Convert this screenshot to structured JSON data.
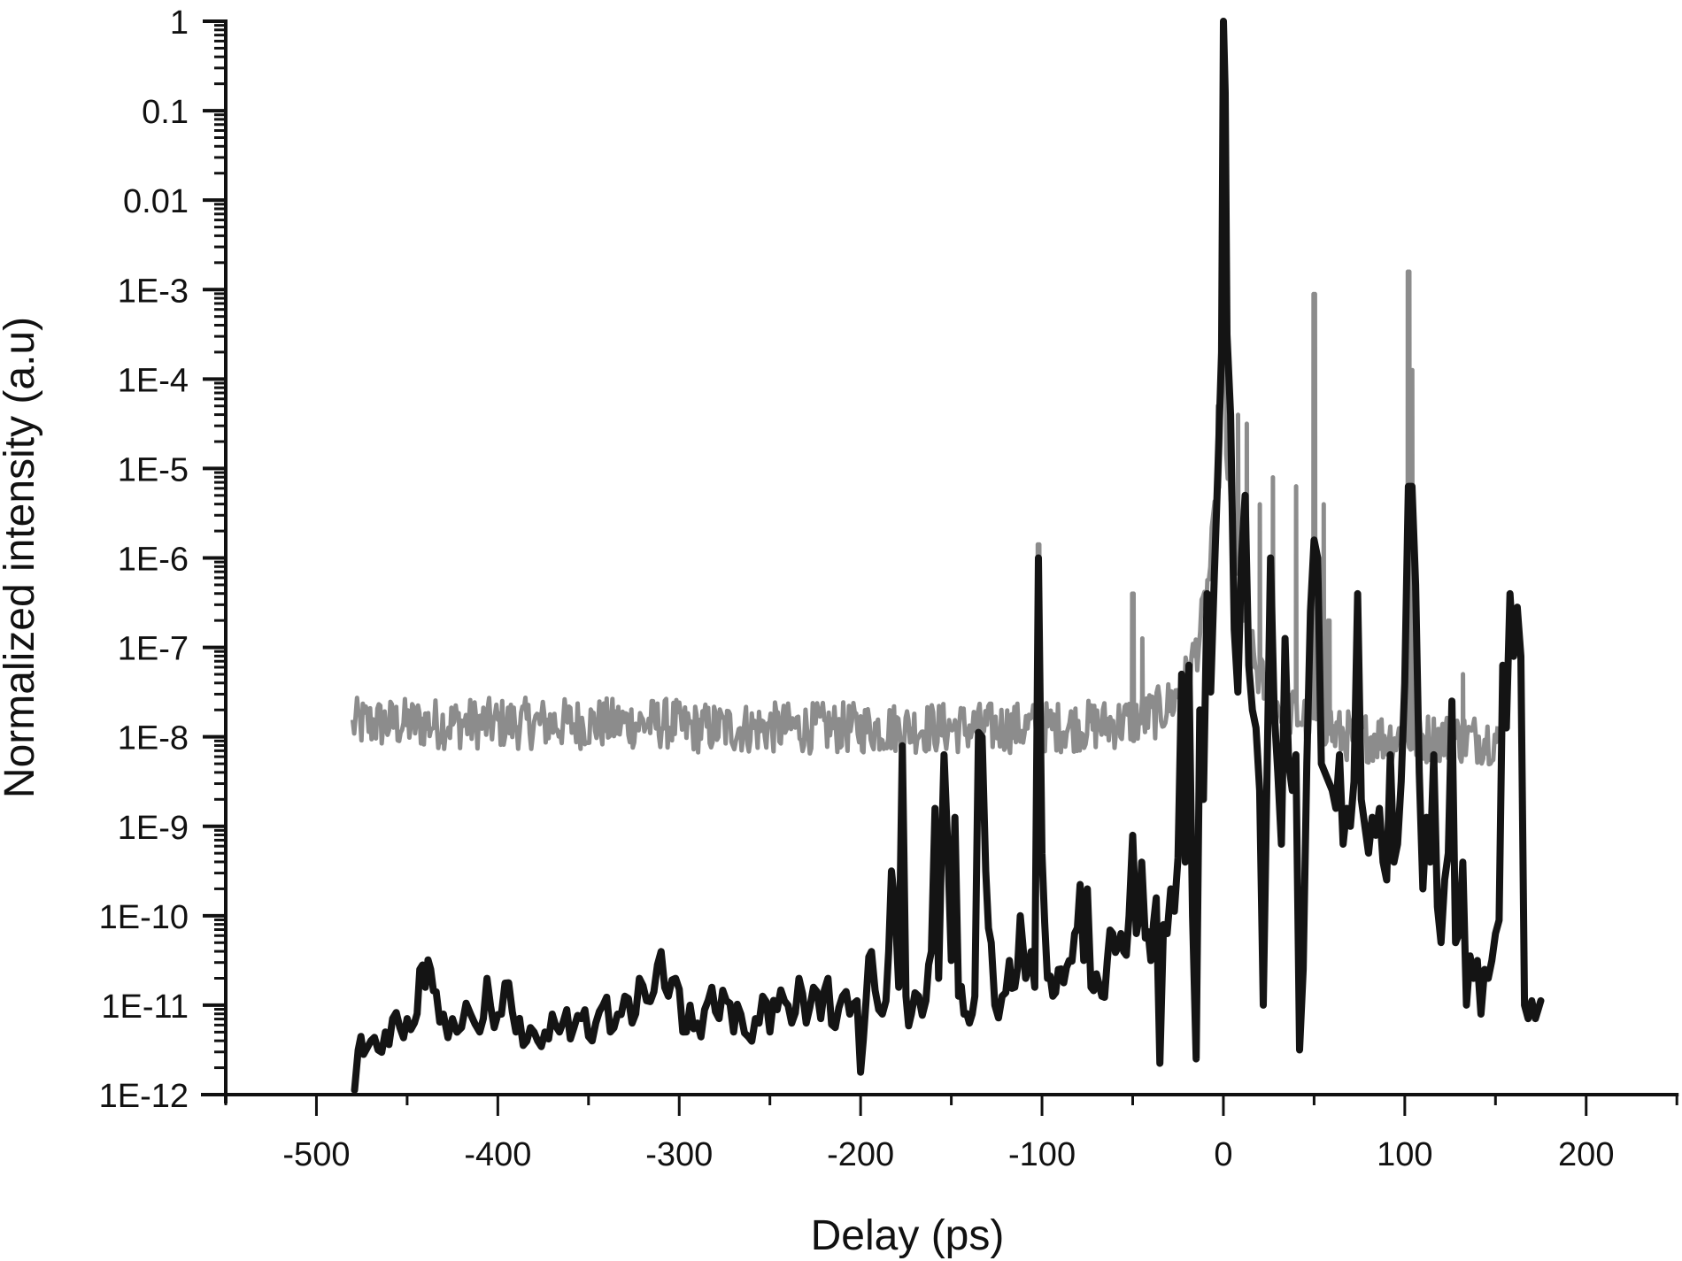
{
  "chart_data": {
    "type": "line",
    "title": "",
    "xlabel": "Delay (ps)",
    "ylabel": "Normalized intensity (a.u)",
    "xscale": "linear",
    "yscale": "log",
    "xlim": [
      -550,
      250
    ],
    "ylim": [
      1e-12,
      1
    ],
    "grid": false,
    "legend": null,
    "x_ticks": [
      -500,
      -400,
      -300,
      -200,
      -100,
      0,
      100,
      200
    ],
    "x_tick_labels": [
      "-500",
      "-400",
      "-300",
      "-200",
      "-100",
      "0",
      "100",
      "200"
    ],
    "y_ticks": [
      1,
      0.1,
      0.01,
      0.001,
      0.0001,
      1e-05,
      1e-06,
      1e-07,
      1e-08,
      1e-09,
      1e-10,
      1e-11,
      1e-12
    ],
    "y_tick_labels": [
      "1",
      "0.1",
      "0.01",
      "1E-3",
      "1E-4",
      "1E-5",
      "1E-6",
      "1E-7",
      "1E-8",
      "1E-9",
      "1E-10",
      "1E-11",
      "1E-12"
    ],
    "series": [
      {
        "name": "gray trace",
        "color": "#8c8c8c",
        "line_width": 5,
        "x_range": [
          -480,
          152
        ],
        "baseline_log10": -7.9,
        "noise_log10": 0.18,
        "peaks": [
          {
            "x": -102,
            "log10": -5.85
          },
          {
            "x": -50,
            "log10": -6.4
          },
          {
            "x": -45,
            "log10": -6.9
          },
          {
            "x": -3,
            "log10": -4.3
          },
          {
            "x": 0,
            "log10": -2.6
          },
          {
            "x": 1,
            "log10": -3.8
          },
          {
            "x": 8,
            "log10": -4.4
          },
          {
            "x": 13,
            "log10": -4.5
          },
          {
            "x": 20,
            "log10": -5.4
          },
          {
            "x": 27,
            "log10": -5.1
          },
          {
            "x": 40,
            "log10": -5.2
          },
          {
            "x": 50,
            "log10": -3.05
          },
          {
            "x": 55,
            "log10": -5.4
          },
          {
            "x": 58,
            "log10": -6.7
          },
          {
            "x": 102,
            "log10": -2.8
          },
          {
            "x": 104,
            "log10": -3.9
          },
          {
            "x": 132,
            "log10": -7.3
          }
        ]
      },
      {
        "name": "black trace",
        "color": "#141414",
        "line_width": 8,
        "points": [
          [
            -479,
            -11.95
          ],
          [
            -477,
            -11.5
          ],
          [
            -474,
            -11.55
          ],
          [
            -470,
            -11.4
          ],
          [
            -466,
            -11.5
          ],
          [
            -462,
            -11.3
          ],
          [
            -458,
            -11.15
          ],
          [
            -454,
            -11.25
          ],
          [
            -450,
            -11.15
          ],
          [
            -446,
            -11.2
          ],
          [
            -443,
            -10.6
          ],
          [
            -440,
            -10.8
          ],
          [
            -437,
            -10.6
          ],
          [
            -434,
            -10.85
          ],
          [
            -430,
            -11.1
          ],
          [
            -425,
            -11.15
          ],
          [
            -420,
            -11.25
          ],
          [
            -415,
            -11.1
          ],
          [
            -410,
            -11.3
          ],
          [
            -406,
            -10.7
          ],
          [
            -402,
            -11.25
          ],
          [
            -398,
            -11.1
          ],
          [
            -394,
            -10.75
          ],
          [
            -390,
            -11.3
          ],
          [
            -386,
            -11.45
          ],
          [
            -382,
            -11.25
          ],
          [
            -378,
            -11.4
          ],
          [
            -374,
            -11.3
          ],
          [
            -370,
            -11.1
          ],
          [
            -366,
            -11.3
          ],
          [
            -362,
            -11.05
          ],
          [
            -358,
            -11.25
          ],
          [
            -354,
            -11.15
          ],
          [
            -350,
            -11.35
          ],
          [
            -346,
            -11.2
          ],
          [
            -342,
            -11.0
          ],
          [
            -338,
            -11.3
          ],
          [
            -334,
            -11.1
          ],
          [
            -330,
            -10.9
          ],
          [
            -326,
            -11.2
          ],
          [
            -322,
            -10.7
          ],
          [
            -318,
            -10.95
          ],
          [
            -314,
            -10.85
          ],
          [
            -310,
            -10.4
          ],
          [
            -306,
            -10.9
          ],
          [
            -302,
            -10.7
          ],
          [
            -298,
            -11.3
          ],
          [
            -294,
            -11.0
          ],
          [
            -290,
            -11.2
          ],
          [
            -286,
            -11.05
          ],
          [
            -282,
            -10.8
          ],
          [
            -278,
            -11.15
          ],
          [
            -274,
            -10.95
          ],
          [
            -270,
            -11.3
          ],
          [
            -266,
            -11.1
          ],
          [
            -262,
            -11.35
          ],
          [
            -258,
            -11.15
          ],
          [
            -254,
            -10.9
          ],
          [
            -250,
            -11.3
          ],
          [
            -246,
            -11.05
          ],
          [
            -242,
            -10.95
          ],
          [
            -238,
            -11.2
          ],
          [
            -234,
            -10.7
          ],
          [
            -230,
            -11.2
          ],
          [
            -226,
            -10.8
          ],
          [
            -222,
            -11.15
          ],
          [
            -218,
            -10.7
          ],
          [
            -214,
            -11.25
          ],
          [
            -210,
            -10.9
          ],
          [
            -206,
            -11.1
          ],
          [
            -202,
            -10.95
          ],
          [
            -200,
            -11.75
          ],
          [
            -197,
            -10.95
          ],
          [
            -194,
            -10.4
          ],
          [
            -190,
            -11.05
          ],
          [
            -186,
            -10.95
          ],
          [
            -183,
            -9.5
          ],
          [
            -181,
            -9.9
          ],
          [
            -179,
            -10.8
          ],
          [
            -177,
            -8.1
          ],
          [
            -175,
            -10.9
          ],
          [
            -172,
            -11.1
          ],
          [
            -168,
            -10.9
          ],
          [
            -164,
            -10.95
          ],
          [
            -161,
            -10.4
          ],
          [
            -159,
            -8.8
          ],
          [
            -157,
            -10.7
          ],
          [
            -154,
            -8.2
          ],
          [
            -152,
            -9.2
          ],
          [
            -150,
            -10.5
          ],
          [
            -148,
            -8.9
          ],
          [
            -146,
            -10.9
          ],
          [
            -143,
            -11.1
          ],
          [
            -140,
            -11.2
          ],
          [
            -137,
            -10.9
          ],
          [
            -135,
            -7.95
          ],
          [
            -133,
            -8.0
          ],
          [
            -131,
            -9.5
          ],
          [
            -128,
            -10.3
          ],
          [
            -126,
            -11.0
          ],
          [
            -122,
            -10.9
          ],
          [
            -118,
            -10.5
          ],
          [
            -115,
            -10.8
          ],
          [
            -112,
            -10.0
          ],
          [
            -109,
            -10.7
          ],
          [
            -106,
            -10.4
          ],
          [
            -104,
            -10.8
          ],
          [
            -102,
            -6.0
          ],
          [
            -100,
            -9.3
          ],
          [
            -97,
            -10.7
          ],
          [
            -94,
            -10.9
          ],
          [
            -91,
            -10.6
          ],
          [
            -88,
            -10.75
          ],
          [
            -85,
            -10.5
          ],
          [
            -82,
            -10.2
          ],
          [
            -79,
            -9.65
          ],
          [
            -77,
            -10.5
          ],
          [
            -75,
            -9.7
          ],
          [
            -73,
            -10.8
          ],
          [
            -70,
            -10.65
          ],
          [
            -67,
            -10.9
          ],
          [
            -64,
            -10.5
          ],
          [
            -61,
            -10.2
          ],
          [
            -58,
            -10.35
          ],
          [
            -55,
            -10.4
          ],
          [
            -52,
            -10.0
          ],
          [
            -50,
            -9.1
          ],
          [
            -48,
            -10.2
          ],
          [
            -45,
            -9.4
          ],
          [
            -43,
            -10.25
          ],
          [
            -40,
            -10.5
          ],
          [
            -37,
            -9.8
          ],
          [
            -35,
            -11.65
          ],
          [
            -33,
            -10.1
          ],
          [
            -31,
            -10.2
          ],
          [
            -29,
            -9.7
          ],
          [
            -27,
            -9.95
          ],
          [
            -25,
            -9.35
          ],
          [
            -23,
            -7.3
          ],
          [
            -21,
            -9.4
          ],
          [
            -19,
            -7.2
          ],
          [
            -17,
            -10.0
          ],
          [
            -15,
            -11.6
          ],
          [
            -13,
            -7.7
          ],
          [
            -11,
            -8.7
          ],
          [
            -9,
            -6.4
          ],
          [
            -7,
            -7.5
          ],
          [
            -5,
            -6.2
          ],
          [
            -3,
            -5.0
          ],
          [
            -1,
            -3.7
          ],
          [
            0,
            0
          ],
          [
            1,
            -0.8
          ],
          [
            2,
            -3.5
          ],
          [
            4,
            -4.4
          ],
          [
            6,
            -6.8
          ],
          [
            8,
            -7.5
          ],
          [
            10,
            -6.0
          ],
          [
            12,
            -5.3
          ],
          [
            14,
            -7.2
          ],
          [
            16,
            -7.7
          ],
          [
            18,
            -7.9
          ],
          [
            20,
            -8.6
          ],
          [
            22,
            -11.0
          ],
          [
            24,
            -8.5
          ],
          [
            26,
            -6.0
          ],
          [
            28,
            -7.7
          ],
          [
            30,
            -8.4
          ],
          [
            32,
            -9.2
          ],
          [
            34,
            -6.9
          ],
          [
            36,
            -8.3
          ],
          [
            38,
            -8.6
          ],
          [
            40,
            -8.2
          ],
          [
            42,
            -11.5
          ],
          [
            44,
            -10.6
          ],
          [
            46,
            -8.3
          ],
          [
            48,
            -6.6
          ],
          [
            50,
            -5.8
          ],
          [
            52,
            -6.0
          ],
          [
            54,
            -8.3
          ],
          [
            56,
            -8.4
          ],
          [
            58,
            -8.5
          ],
          [
            60,
            -8.6
          ],
          [
            62,
            -8.8
          ],
          [
            64,
            -8.2
          ],
          [
            66,
            -9.2
          ],
          [
            68,
            -8.8
          ],
          [
            70,
            -9.0
          ],
          [
            72,
            -8.5
          ],
          [
            74,
            -6.4
          ],
          [
            76,
            -8.7
          ],
          [
            78,
            -9.0
          ],
          [
            80,
            -9.3
          ],
          [
            82,
            -8.9
          ],
          [
            84,
            -9.1
          ],
          [
            86,
            -8.8
          ],
          [
            88,
            -9.4
          ],
          [
            90,
            -9.6
          ],
          [
            92,
            -8.2
          ],
          [
            94,
            -9.4
          ],
          [
            96,
            -9.2
          ],
          [
            98,
            -8.5
          ],
          [
            100,
            -7.4
          ],
          [
            102,
            -5.2
          ],
          [
            104,
            -5.2
          ],
          [
            106,
            -6.3
          ],
          [
            108,
            -8.4
          ],
          [
            110,
            -9.7
          ],
          [
            112,
            -8.9
          ],
          [
            114,
            -9.4
          ],
          [
            116,
            -8.2
          ],
          [
            118,
            -9.9
          ],
          [
            120,
            -10.3
          ],
          [
            122,
            -9.6
          ],
          [
            124,
            -9.3
          ],
          [
            126,
            -7.6
          ],
          [
            128,
            -10.3
          ],
          [
            130,
            -10.2
          ],
          [
            132,
            -9.4
          ],
          [
            134,
            -11.0
          ],
          [
            136,
            -10.45
          ],
          [
            138,
            -10.7
          ],
          [
            140,
            -10.5
          ],
          [
            142,
            -11.1
          ],
          [
            144,
            -10.6
          ],
          [
            146,
            -10.7
          ],
          [
            148,
            -10.5
          ],
          [
            150,
            -10.2
          ],
          [
            152,
            -10.05
          ],
          [
            154,
            -7.2
          ],
          [
            156,
            -7.9
          ],
          [
            158,
            -6.4
          ],
          [
            160,
            -7.1
          ],
          [
            162,
            -6.55
          ],
          [
            164,
            -7.1
          ],
          [
            166,
            -11.0
          ],
          [
            168,
            -11.15
          ],
          [
            170,
            -10.95
          ],
          [
            172,
            -11.15
          ],
          [
            175,
            -10.95
          ]
        ]
      }
    ]
  }
}
